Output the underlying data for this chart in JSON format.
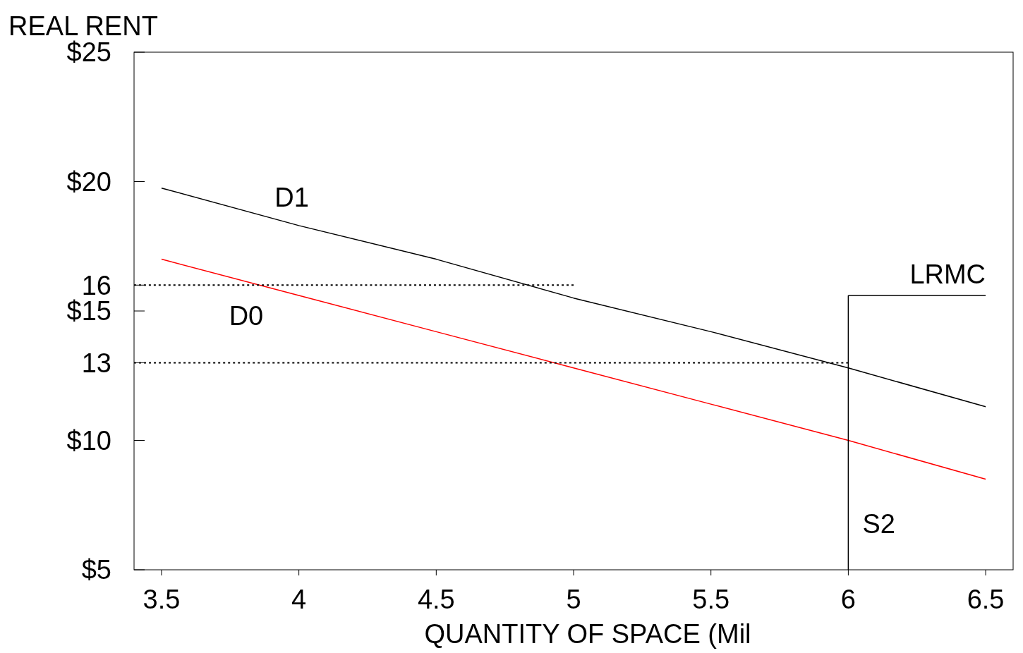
{
  "chart_data": {
    "type": "line",
    "ylabel": "REAL RENT",
    "xlabel": "QUANTITY OF SPACE (Mil",
    "xlim": [
      3.4,
      6.6
    ],
    "ylim": [
      5,
      25
    ],
    "xticks": [
      3.5,
      4,
      4.5,
      5,
      5.5,
      6,
      6.5
    ],
    "yticks": [
      {
        "value": 5,
        "label": "$5"
      },
      {
        "value": 10,
        "label": "$10"
      },
      13,
      {
        "value": 15,
        "label": "$15"
      },
      16,
      {
        "value": 20,
        "label": "$20"
      },
      {
        "value": 25,
        "label": "$25"
      }
    ],
    "grid": false,
    "marker": "none",
    "series": [
      {
        "name": "D1",
        "color": "#000000",
        "x": [
          3.5,
          4,
          4.5,
          5,
          5.5,
          6,
          6.5
        ],
        "values": [
          19.75,
          18.3,
          17,
          15.5,
          14.2,
          12.8,
          11.3
        ]
      },
      {
        "name": "D0",
        "color": "#ff0000",
        "x": [
          3.5,
          4,
          4.5,
          5,
          5.5,
          6,
          6.5
        ],
        "values": [
          17,
          15.6,
          14.2,
          12.8,
          11.4,
          10,
          8.5
        ]
      },
      {
        "color": "#000000",
        "x": [
          3.4,
          5
        ],
        "values": [
          16,
          16
        ],
        "line_style": "dotted"
      },
      {
        "color": "#000000",
        "x": [
          3.4,
          6
        ],
        "values": [
          13,
          13
        ],
        "line_style": "dotted"
      },
      {
        "name": "S2",
        "color": "#000000",
        "x": [
          6,
          6
        ],
        "values": [
          5,
          15.6
        ]
      },
      {
        "name": "LRMC",
        "color": "#000000",
        "x": [
          6,
          6.5
        ],
        "values": [
          15.6,
          15.6
        ]
      }
    ]
  }
}
